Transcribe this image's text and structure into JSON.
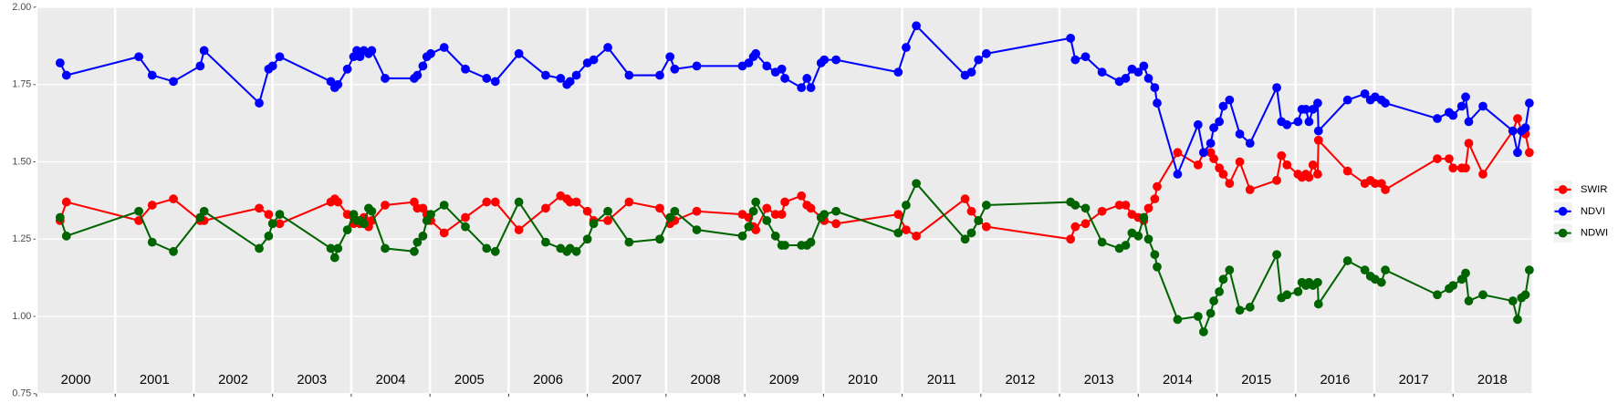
{
  "chart_data": {
    "type": "line",
    "x": [
      2000.3,
      2000.38,
      2001.3,
      2001.47,
      2001.74,
      2002.08,
      2002.13,
      2002.83,
      2002.95,
      2003.0,
      2003.09,
      2003.74,
      2003.79,
      2003.83,
      2003.95,
      2004.03,
      2004.07,
      2004.11,
      2004.16,
      2004.22,
      2004.26,
      2004.43,
      2004.8,
      2004.84,
      2004.91,
      2004.96,
      2005.01,
      2005.18,
      2005.45,
      2005.72,
      2005.83,
      2006.13,
      2006.47,
      2006.66,
      2006.74,
      2006.78,
      2006.86,
      2007.0,
      2007.08,
      2007.26,
      2007.53,
      2007.92,
      2008.05,
      2008.11,
      2008.39,
      2008.97,
      2009.05,
      2009.11,
      2009.14,
      2009.28,
      2009.39,
      2009.47,
      2009.51,
      2009.72,
      2009.79,
      2009.84,
      2009.97,
      2010.01,
      2010.16,
      2010.95,
      2011.05,
      2011.18,
      2011.8,
      2011.88,
      2011.97,
      2012.07,
      2013.14,
      2013.2,
      2013.33,
      2013.54,
      2013.76,
      2013.84,
      2013.92,
      2014.0,
      2014.07,
      2014.13,
      2014.21,
      2014.24,
      2014.5,
      2014.76,
      2014.83,
      2014.92,
      2014.96,
      2015.03,
      2015.08,
      2015.16,
      2015.29,
      2015.42,
      2015.76,
      2015.82,
      2015.89,
      2016.03,
      2016.08,
      2016.13,
      2016.17,
      2016.22,
      2016.28,
      2016.29,
      2016.66,
      2016.88,
      2016.95,
      2017.01,
      2017.09,
      2017.14,
      2017.8,
      2017.95,
      2018.0,
      2018.11,
      2018.16,
      2018.2,
      2018.38,
      2018.76,
      2018.82,
      2018.87,
      2018.92,
      2018.97
    ],
    "series": [
      {
        "name": "SWIR",
        "color": "#ff0000",
        "values": [
          1.31,
          1.37,
          1.31,
          1.36,
          1.38,
          1.31,
          1.31,
          1.35,
          1.33,
          1.3,
          1.3,
          1.37,
          1.38,
          1.37,
          1.33,
          1.3,
          1.31,
          1.3,
          1.32,
          1.29,
          1.31,
          1.36,
          1.37,
          1.35,
          1.35,
          1.33,
          1.31,
          1.27,
          1.32,
          1.37,
          1.37,
          1.28,
          1.35,
          1.39,
          1.38,
          1.37,
          1.37,
          1.34,
          1.31,
          1.31,
          1.37,
          1.35,
          1.3,
          1.31,
          1.34,
          1.33,
          1.32,
          1.29,
          1.28,
          1.35,
          1.33,
          1.33,
          1.37,
          1.39,
          1.36,
          1.35,
          1.32,
          1.31,
          1.3,
          1.33,
          1.28,
          1.26,
          1.38,
          1.34,
          1.31,
          1.29,
          1.25,
          1.29,
          1.3,
          1.34,
          1.36,
          1.36,
          1.33,
          1.32,
          1.31,
          1.35,
          1.38,
          1.42,
          1.53,
          1.49,
          1.53,
          1.53,
          1.51,
          1.48,
          1.46,
          1.43,
          1.5,
          1.41,
          1.44,
          1.52,
          1.49,
          1.46,
          1.45,
          1.46,
          1.45,
          1.49,
          1.46,
          1.57,
          1.47,
          1.43,
          1.44,
          1.43,
          1.43,
          1.41,
          1.51,
          1.51,
          1.48,
          1.48,
          1.48,
          1.56,
          1.46,
          1.6,
          1.64,
          1.6,
          1.59,
          1.53
        ]
      },
      {
        "name": "NDVI",
        "color": "#0000ff",
        "values": [
          1.82,
          1.78,
          1.84,
          1.78,
          1.76,
          1.81,
          1.86,
          1.69,
          1.8,
          1.81,
          1.84,
          1.76,
          1.74,
          1.75,
          1.8,
          1.84,
          1.86,
          1.84,
          1.86,
          1.85,
          1.86,
          1.77,
          1.77,
          1.78,
          1.81,
          1.84,
          1.85,
          1.87,
          1.8,
          1.77,
          1.76,
          1.85,
          1.78,
          1.77,
          1.75,
          1.76,
          1.78,
          1.82,
          1.83,
          1.87,
          1.78,
          1.78,
          1.84,
          1.8,
          1.81,
          1.81,
          1.82,
          1.84,
          1.85,
          1.81,
          1.79,
          1.8,
          1.77,
          1.74,
          1.77,
          1.74,
          1.82,
          1.83,
          1.83,
          1.79,
          1.87,
          1.94,
          1.78,
          1.79,
          1.83,
          1.85,
          1.9,
          1.83,
          1.84,
          1.79,
          1.76,
          1.77,
          1.8,
          1.79,
          1.81,
          1.77,
          1.74,
          1.69,
          1.46,
          1.62,
          1.53,
          1.56,
          1.61,
          1.63,
          1.68,
          1.7,
          1.59,
          1.56,
          1.74,
          1.63,
          1.62,
          1.63,
          1.67,
          1.67,
          1.63,
          1.67,
          1.69,
          1.6,
          1.7,
          1.72,
          1.7,
          1.71,
          1.7,
          1.69,
          1.64,
          1.66,
          1.65,
          1.68,
          1.71,
          1.63,
          1.68,
          1.6,
          1.53,
          1.6,
          1.61,
          1.69
        ]
      },
      {
        "name": "NDWI",
        "color": "#006400",
        "values": [
          1.32,
          1.26,
          1.34,
          1.24,
          1.21,
          1.32,
          1.34,
          1.22,
          1.26,
          1.3,
          1.33,
          1.22,
          1.19,
          1.22,
          1.28,
          1.33,
          1.31,
          1.31,
          1.3,
          1.35,
          1.34,
          1.22,
          1.21,
          1.24,
          1.26,
          1.31,
          1.33,
          1.36,
          1.29,
          1.22,
          1.21,
          1.37,
          1.24,
          1.22,
          1.21,
          1.22,
          1.21,
          1.25,
          1.3,
          1.34,
          1.24,
          1.25,
          1.32,
          1.34,
          1.28,
          1.26,
          1.29,
          1.34,
          1.37,
          1.31,
          1.26,
          1.23,
          1.23,
          1.23,
          1.23,
          1.24,
          1.32,
          1.33,
          1.34,
          1.27,
          1.36,
          1.43,
          1.25,
          1.27,
          1.31,
          1.36,
          1.37,
          1.36,
          1.35,
          1.24,
          1.22,
          1.23,
          1.27,
          1.26,
          1.32,
          1.25,
          1.2,
          1.16,
          0.99,
          1.0,
          0.95,
          1.01,
          1.05,
          1.08,
          1.12,
          1.15,
          1.02,
          1.03,
          1.2,
          1.06,
          1.07,
          1.08,
          1.11,
          1.1,
          1.11,
          1.1,
          1.11,
          1.04,
          1.18,
          1.15,
          1.13,
          1.12,
          1.11,
          1.15,
          1.07,
          1.09,
          1.1,
          1.12,
          1.14,
          1.05,
          1.07,
          1.05,
          0.99,
          1.06,
          1.07,
          1.15
        ]
      }
    ],
    "xlim": [
      2000,
      2019
    ],
    "xticks": [
      2000,
      2001,
      2002,
      2003,
      2004,
      2005,
      2006,
      2007,
      2008,
      2009,
      2010,
      2011,
      2012,
      2013,
      2014,
      2015,
      2016,
      2017,
      2018
    ],
    "ylim": [
      0.75,
      2
    ],
    "yticks": [
      0.75,
      {
        "value": 1,
        "label": "1.00"
      },
      1.25,
      {
        "value": 1.5,
        "label": "1.50"
      },
      1.75,
      {
        "value": 2,
        "label": "2.00"
      }
    ],
    "grid": true,
    "legend": "right"
  }
}
